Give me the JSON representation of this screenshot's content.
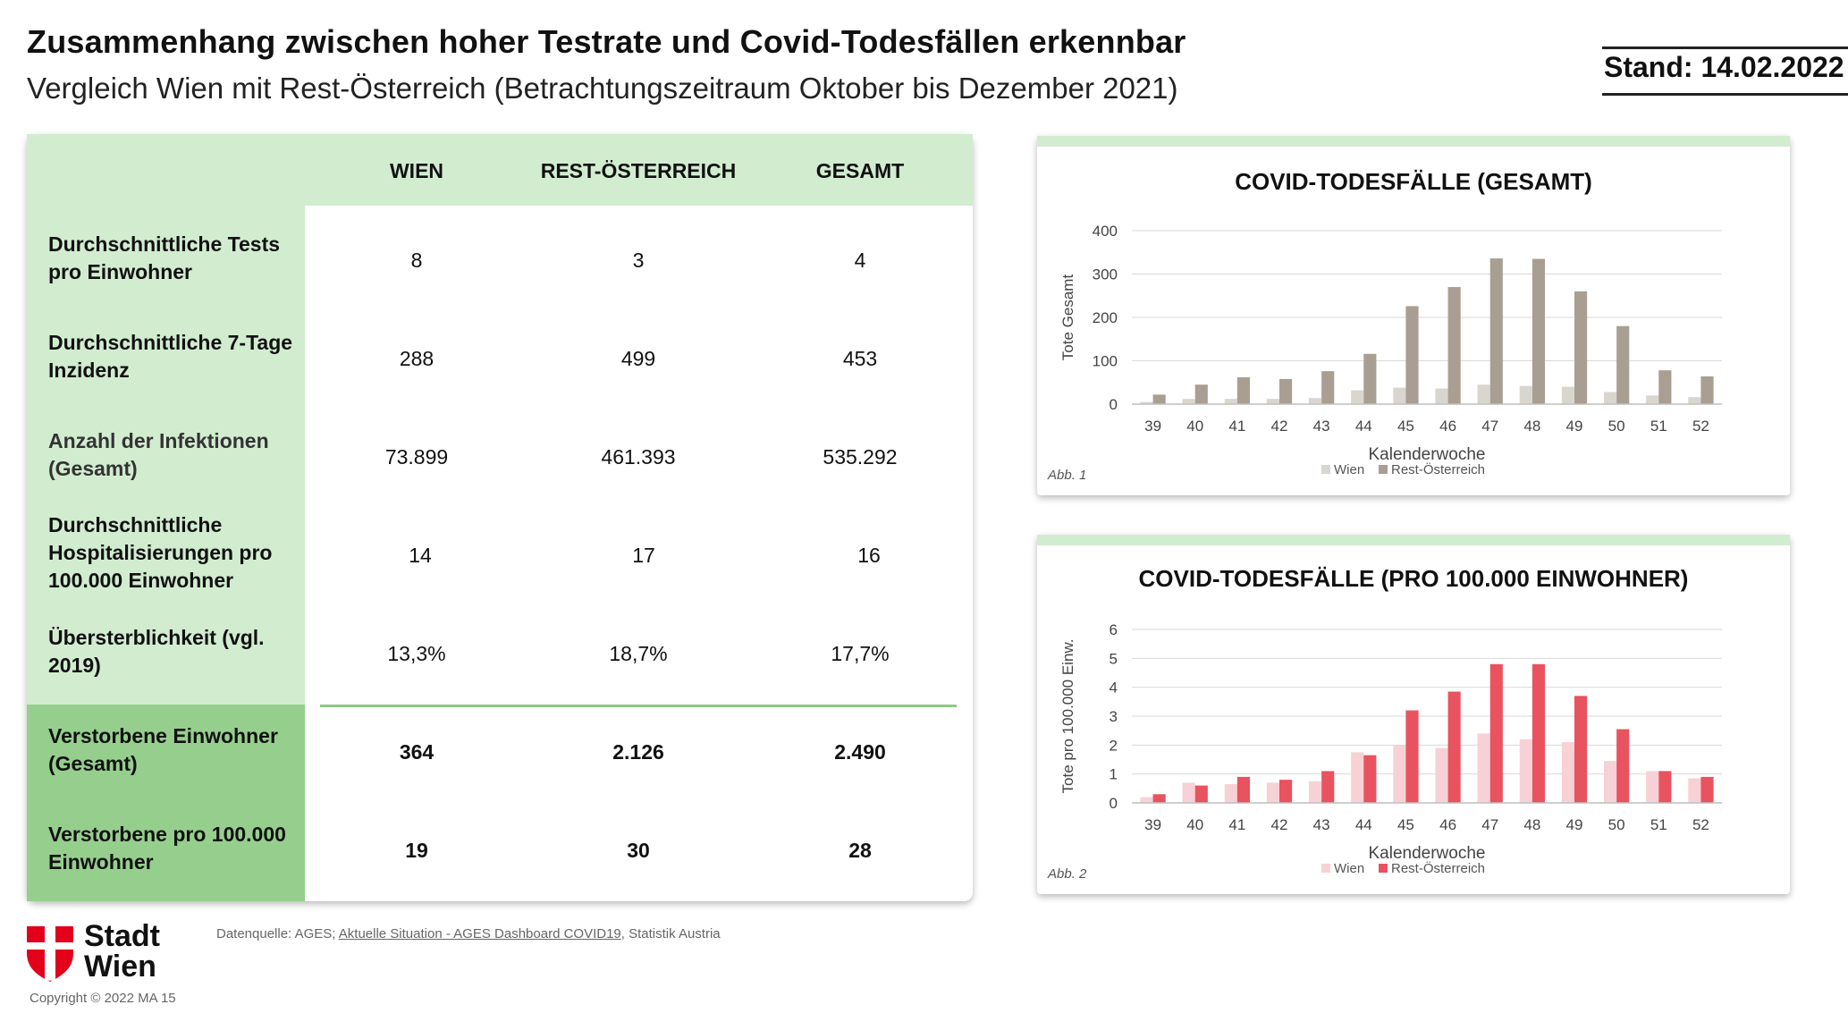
{
  "header": {
    "title": "Zusammenhang zwischen hoher Testrate und Covid-Todesfällen erkennbar",
    "subtitle": "Vergleich Wien mit Rest-Österreich (Betrachtungszeitraum Oktober bis Dezember 2021)",
    "stand": "Stand: 14.02.2022"
  },
  "table": {
    "columns": [
      "WIEN",
      "REST-ÖSTERREICH",
      "GESAMT"
    ],
    "rows": [
      {
        "label": "Durchschnittliche Tests pro Einwohner",
        "values": [
          "8",
          "3",
          "4"
        ]
      },
      {
        "label": "Durchschnittliche 7-Tage Inzidenz",
        "values": [
          "288",
          "499",
          "453"
        ]
      },
      {
        "label": "Anzahl der Infektionen (Gesamt)",
        "values": [
          "73.899",
          "461.393",
          "535.292"
        ]
      },
      {
        "label": "Durchschnittliche Hospitalisierungen pro 100.000 Einwohner",
        "values": [
          "14",
          "17",
          "16"
        ]
      },
      {
        "label": "Übersterblichkeit (vgl. 2019)",
        "values": [
          "13,3%",
          "18,7%",
          "17,7%"
        ]
      },
      {
        "label": "Verstorbene Einwohner (Gesamt)",
        "values": [
          "364",
          "2.126",
          "2.490"
        ]
      },
      {
        "label": "Verstorbene pro 100.000 Einwohner",
        "values": [
          "19",
          "30",
          "28"
        ]
      }
    ]
  },
  "chart_data": [
    {
      "type": "bar",
      "title": "COVID-TODESFÄLLE (GESAMT)",
      "xlabel": "Kalenderwoche",
      "ylabel": "Tote Gesamt",
      "ylim": [
        0,
        400
      ],
      "yticks": [
        0,
        100,
        200,
        300,
        400
      ],
      "categories": [
        "39",
        "40",
        "41",
        "42",
        "43",
        "44",
        "45",
        "46",
        "47",
        "48",
        "49",
        "50",
        "51",
        "52"
      ],
      "series": [
        {
          "name": "Wien",
          "color": "#d9d6d0",
          "values": [
            5,
            12,
            12,
            12,
            14,
            32,
            38,
            36,
            45,
            42,
            40,
            28,
            20,
            16
          ]
        },
        {
          "name": "Rest-Österreich",
          "color": "#a89f92",
          "values": [
            22,
            45,
            62,
            58,
            76,
            116,
            226,
            270,
            336,
            335,
            260,
            180,
            78,
            64
          ]
        }
      ],
      "legend": "bottom",
      "note": "Abb. 1"
    },
    {
      "type": "bar",
      "title": "COVID-TODESFÄLLE (PRO 100.000 EINWOHNER)",
      "xlabel": "Kalenderwoche",
      "ylabel": "Tote pro 100.000 Einw.",
      "ylim": [
        0,
        6
      ],
      "yticks": [
        0,
        1,
        2,
        3,
        4,
        5,
        6
      ],
      "categories": [
        "39",
        "40",
        "41",
        "42",
        "43",
        "44",
        "45",
        "46",
        "47",
        "48",
        "49",
        "50",
        "51",
        "52"
      ],
      "series": [
        {
          "name": "Wien",
          "color": "#f7d1d6",
          "values": [
            0.2,
            0.7,
            0.65,
            0.7,
            0.75,
            1.75,
            2.0,
            1.9,
            2.4,
            2.2,
            2.1,
            1.45,
            1.1,
            0.85
          ]
        },
        {
          "name": "Rest-Österreich",
          "color": "#e8535f",
          "values": [
            0.3,
            0.6,
            0.9,
            0.8,
            1.1,
            1.65,
            3.2,
            3.85,
            4.8,
            4.8,
            3.7,
            2.55,
            1.1,
            0.9
          ]
        }
      ],
      "legend": "bottom",
      "note": "Abb. 2"
    }
  ],
  "footer": {
    "logo_line1": "Stadt",
    "logo_line2": "Wien",
    "source_prefix": "Datenquelle: AGES; ",
    "source_link": "Aktuelle Situation - AGES Dashboard COVID19",
    "source_suffix": ", Statistik Austria",
    "copyright": "Copyright © 2022 MA 15"
  }
}
